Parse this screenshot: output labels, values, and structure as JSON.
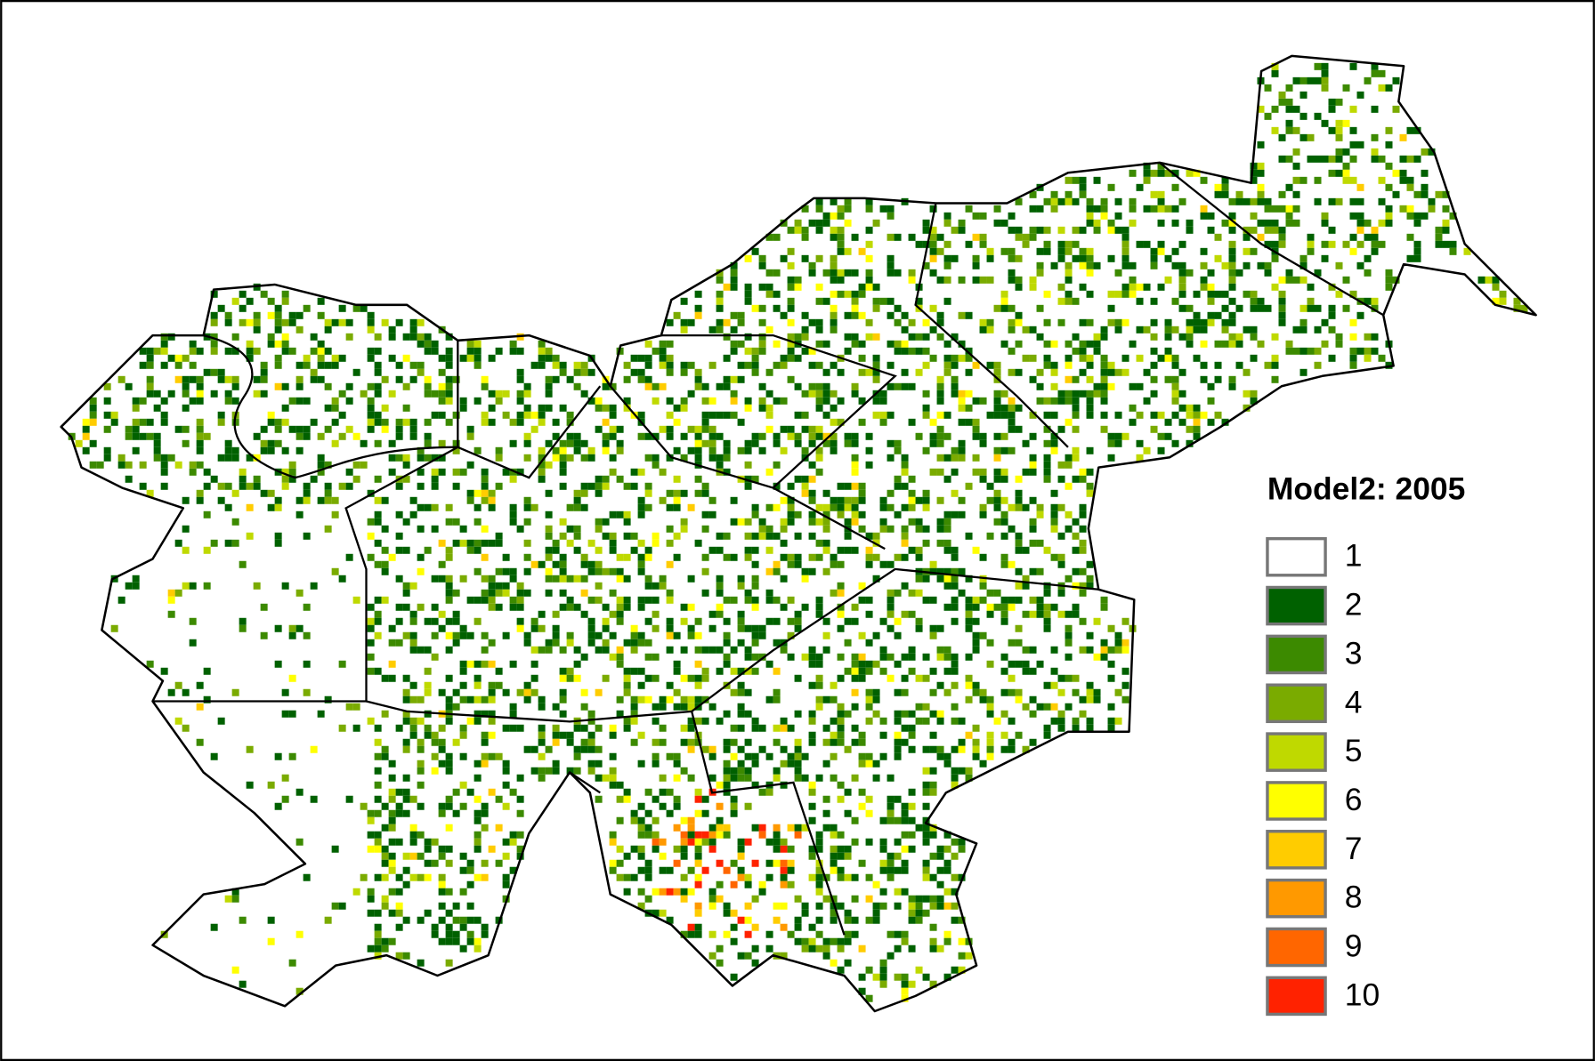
{
  "legend": {
    "title": "Model2: 2005",
    "items": [
      {
        "label": "1",
        "color": "#ffffff"
      },
      {
        "label": "2",
        "color": "#006100"
      },
      {
        "label": "3",
        "color": "#3c8a00"
      },
      {
        "label": "4",
        "color": "#7aab00"
      },
      {
        "label": "5",
        "color": "#bfd900"
      },
      {
        "label": "6",
        "color": "#ffff00"
      },
      {
        "label": "7",
        "color": "#ffcc00"
      },
      {
        "label": "8",
        "color": "#ff9900"
      },
      {
        "label": "9",
        "color": "#ff6600"
      },
      {
        "label": "10",
        "color": "#ff2200"
      }
    ]
  }
}
